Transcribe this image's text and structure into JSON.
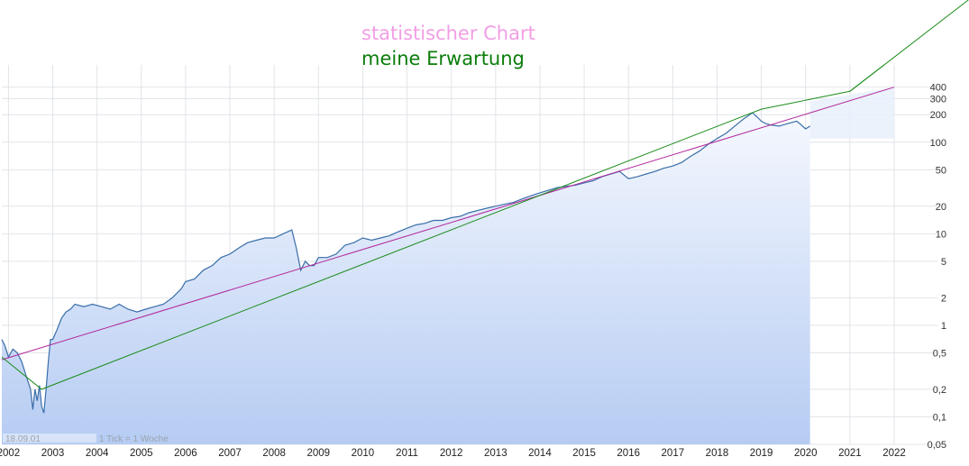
{
  "chart_data": {
    "type": "line",
    "title": "",
    "xlabel": "",
    "ylabel": "",
    "yscale": "log",
    "grid": true,
    "xlim": [
      2001.85,
      2022.0
    ],
    "ylim": [
      0.05,
      700
    ],
    "x_ticks": [
      "2002",
      "2003",
      "2004",
      "2005",
      "2006",
      "2007",
      "2008",
      "2009",
      "2010",
      "2011",
      "2012",
      "2013",
      "2014",
      "2015",
      "2016",
      "2017",
      "2018",
      "2019",
      "2020",
      "2021",
      "2022"
    ],
    "y_ticks": [
      {
        "value": 0.05,
        "label": "0,05"
      },
      {
        "value": 0.1,
        "label": "0,1"
      },
      {
        "value": 0.2,
        "label": "0,2"
      },
      {
        "value": 0.5,
        "label": "0,5"
      },
      {
        "value": 1,
        "label": "1"
      },
      {
        "value": 2,
        "label": "2"
      },
      {
        "value": 5,
        "label": "5"
      },
      {
        "value": 10,
        "label": "10"
      },
      {
        "value": 20,
        "label": "20"
      },
      {
        "value": 50,
        "label": "50"
      },
      {
        "value": 100,
        "label": "100"
      },
      {
        "value": 200,
        "label": "200"
      },
      {
        "value": 300,
        "label": "300"
      },
      {
        "value": 400,
        "label": "400"
      }
    ],
    "annotations": {
      "statistical_label": "statistischer Chart",
      "statistical_color": "#f29ee6",
      "expectation_label": "meine Erwartung",
      "expectation_color": "#0a7d0a",
      "start_date": "18.09.01",
      "tick_note": "1 Tick = 1 Woche"
    },
    "series": [
      {
        "color": "#3a6ea8",
        "x": [
          2001.85,
          2001.92,
          2002.0,
          2002.1,
          2002.2,
          2002.3,
          2002.4,
          2002.5,
          2002.55,
          2002.6,
          2002.65,
          2002.7,
          2002.75,
          2002.8,
          2002.85,
          2002.9,
          2002.95,
          2003.0,
          2003.1,
          2003.2,
          2003.3,
          2003.4,
          2003.5,
          2003.7,
          2003.9,
          2004.1,
          2004.3,
          2004.5,
          2004.7,
          2004.9,
          2005.1,
          2005.3,
          2005.5,
          2005.7,
          2005.9,
          2006.0,
          2006.2,
          2006.4,
          2006.6,
          2006.8,
          2007.0,
          2007.2,
          2007.4,
          2007.6,
          2007.8,
          2008.0,
          2008.2,
          2008.4,
          2008.5,
          2008.6,
          2008.7,
          2008.8,
          2008.9,
          2009.0,
          2009.2,
          2009.4,
          2009.6,
          2009.8,
          2010.0,
          2010.2,
          2010.4,
          2010.6,
          2010.8,
          2011.0,
          2011.2,
          2011.4,
          2011.6,
          2011.8,
          2012.0,
          2012.2,
          2012.4,
          2012.6,
          2012.8,
          2013.0,
          2013.2,
          2013.4,
          2013.6,
          2013.8,
          2014.0,
          2014.2,
          2014.4,
          2014.6,
          2014.8,
          2015.0,
          2015.2,
          2015.4,
          2015.6,
          2015.8,
          2016.0,
          2016.2,
          2016.4,
          2016.6,
          2016.8,
          2017.0,
          2017.2,
          2017.4,
          2017.6,
          2017.8,
          2018.0,
          2018.2,
          2018.4,
          2018.6,
          2018.8,
          2018.9,
          2019.0,
          2019.1,
          2019.2,
          2019.4,
          2019.6,
          2019.8,
          2019.9,
          2020.0,
          2020.1
        ],
        "y": [
          0.7,
          0.6,
          0.45,
          0.55,
          0.5,
          0.4,
          0.28,
          0.2,
          0.12,
          0.2,
          0.15,
          0.22,
          0.13,
          0.11,
          0.2,
          0.4,
          0.7,
          0.7,
          0.9,
          1.2,
          1.4,
          1.5,
          1.7,
          1.6,
          1.7,
          1.6,
          1.5,
          1.7,
          1.5,
          1.4,
          1.5,
          1.6,
          1.7,
          2.0,
          2.5,
          3.0,
          3.2,
          4.0,
          4.5,
          5.5,
          6.0,
          7.0,
          8.0,
          8.5,
          9.0,
          9.0,
          10.0,
          11.0,
          7.0,
          4.0,
          5.0,
          4.5,
          4.5,
          5.5,
          5.5,
          6.0,
          7.5,
          8.0,
          9.0,
          8.5,
          9.0,
          9.5,
          10.5,
          11.5,
          12.5,
          13.0,
          14.0,
          14.0,
          15.0,
          15.5,
          17.0,
          18.0,
          19.0,
          20.0,
          21.0,
          22.0,
          24.0,
          26.0,
          28.0,
          30.0,
          32.0,
          33.0,
          34.0,
          36.0,
          38.0,
          42.0,
          45.0,
          48.0,
          40.0,
          42.0,
          45.0,
          48.0,
          52.0,
          55.0,
          60.0,
          70.0,
          80.0,
          95.0,
          110.0,
          125.0,
          150.0,
          180.0,
          210.0,
          190.0,
          170.0,
          160.0,
          155.0,
          150.0,
          160.0,
          170.0,
          155.0,
          140.0,
          150.0
        ]
      },
      {
        "color": "#b3269b",
        "x": [
          2001.85,
          2022.0
        ],
        "y": [
          0.42,
          400
        ]
      },
      {
        "color": "#1a8c1a",
        "x": [
          2001.85,
          2002.75,
          2019.0,
          2021.0,
          2022.0
        ],
        "y": [
          0.45,
          0.2,
          230,
          360,
          850
        ]
      }
    ]
  }
}
